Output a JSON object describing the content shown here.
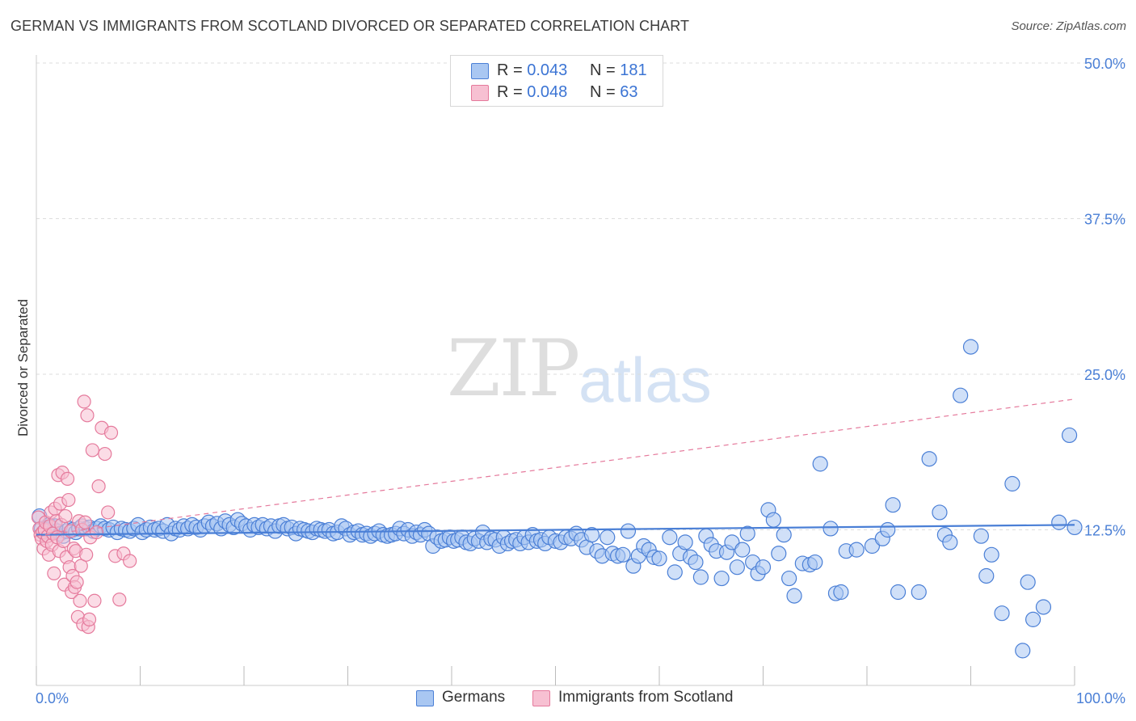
{
  "title": "GERMAN VS IMMIGRANTS FROM SCOTLAND DIVORCED OR SEPARATED CORRELATION CHART",
  "source": "Source: ZipAtlas.com",
  "watermark": {
    "zip": "ZIP",
    "atlas": "atlas"
  },
  "colors": {
    "blue": "#4a7fd6",
    "blue_fill": "#a9c7f2",
    "pink": "#e57a9c",
    "pink_fill": "#f7c0d2",
    "grid": "#dddddd"
  },
  "legend_top": {
    "rows": [
      {
        "r_label": "R = ",
        "r_value": "0.043",
        "n_label": "N = ",
        "n_value": "181"
      },
      {
        "r_label": "R = ",
        "r_value": "0.048",
        "n_label": "N = ",
        "n_value": "63"
      }
    ]
  },
  "bottom_legend": {
    "series1": "Germans",
    "series2": "Immigrants from Scotland"
  },
  "chart_data": {
    "type": "scatter",
    "ylabel": "Divorced or Separated",
    "xlim": [
      0,
      100
    ],
    "ylim": [
      0,
      50
    ],
    "x_tick_labels": {
      "left": "0.0%",
      "right": "100.0%"
    },
    "y_tick_labels": [
      "12.5%",
      "25.0%",
      "37.5%",
      "50.0%"
    ],
    "y_ticks": [
      12.5,
      25.0,
      37.5,
      50.0
    ],
    "legend_placement": "top-center",
    "series": [
      {
        "name": "Germans",
        "r": 0.043,
        "n": 181,
        "trend": {
          "x": [
            0,
            100
          ],
          "y": [
            12.1,
            12.9
          ],
          "style": "solid"
        },
        "points": [
          [
            0.3,
            13.6
          ],
          [
            0.5,
            12.6
          ],
          [
            0.7,
            12.3
          ],
          [
            0.9,
            12.5
          ],
          [
            1.2,
            12.9
          ],
          [
            1.5,
            12.7
          ],
          [
            1.8,
            12.8
          ],
          [
            2.0,
            12.4
          ],
          [
            2.3,
            12.2
          ],
          [
            2.6,
            12.0
          ],
          [
            2.9,
            12.4
          ],
          [
            3.2,
            12.6
          ],
          [
            3.5,
            12.5
          ],
          [
            3.8,
            12.3
          ],
          [
            4.1,
            12.6
          ],
          [
            4.4,
            12.8
          ],
          [
            4.8,
            12.6
          ],
          [
            5.1,
            12.7
          ],
          [
            5.5,
            12.4
          ],
          [
            5.8,
            12.6
          ],
          [
            6.2,
            12.8
          ],
          [
            6.6,
            12.6
          ],
          [
            7.0,
            12.5
          ],
          [
            7.4,
            12.7
          ],
          [
            7.8,
            12.3
          ],
          [
            8.2,
            12.6
          ],
          [
            8.6,
            12.5
          ],
          [
            9.0,
            12.4
          ],
          [
            9.4,
            12.6
          ],
          [
            9.8,
            12.9
          ],
          [
            10.2,
            12.3
          ],
          [
            10.6,
            12.5
          ],
          [
            11.0,
            12.7
          ],
          [
            11.4,
            12.5
          ],
          [
            11.8,
            12.6
          ],
          [
            12.2,
            12.4
          ],
          [
            12.6,
            12.9
          ],
          [
            13.0,
            12.2
          ],
          [
            13.4,
            12.6
          ],
          [
            13.8,
            12.5
          ],
          [
            14.2,
            12.8
          ],
          [
            14.6,
            12.6
          ],
          [
            15.0,
            12.9
          ],
          [
            15.4,
            12.7
          ],
          [
            15.8,
            12.5
          ],
          [
            16.2,
            12.8
          ],
          [
            16.6,
            13.1
          ],
          [
            17.0,
            12.8
          ],
          [
            17.4,
            13.0
          ],
          [
            17.8,
            12.6
          ],
          [
            18.2,
            13.2
          ],
          [
            18.6,
            12.9
          ],
          [
            19.0,
            12.7
          ],
          [
            19.4,
            13.3
          ],
          [
            19.8,
            13.0
          ],
          [
            20.2,
            12.8
          ],
          [
            20.6,
            12.5
          ],
          [
            21.0,
            12.9
          ],
          [
            21.4,
            12.7
          ],
          [
            21.8,
            12.9
          ],
          [
            22.2,
            12.6
          ],
          [
            22.6,
            12.8
          ],
          [
            23.0,
            12.4
          ],
          [
            23.4,
            12.8
          ],
          [
            23.8,
            12.9
          ],
          [
            24.2,
            12.6
          ],
          [
            24.6,
            12.7
          ],
          [
            25.0,
            12.2
          ],
          [
            25.4,
            12.6
          ],
          [
            25.8,
            12.5
          ],
          [
            26.2,
            12.4
          ],
          [
            26.6,
            12.3
          ],
          [
            27.0,
            12.6
          ],
          [
            27.4,
            12.5
          ],
          [
            27.8,
            12.4
          ],
          [
            28.2,
            12.5
          ],
          [
            28.6,
            12.2
          ],
          [
            29.0,
            12.3
          ],
          [
            29.4,
            12.8
          ],
          [
            29.8,
            12.6
          ],
          [
            30.2,
            12.1
          ],
          [
            30.6,
            12.3
          ],
          [
            31.0,
            12.4
          ],
          [
            31.4,
            12.1
          ],
          [
            31.8,
            12.2
          ],
          [
            32.2,
            12.0
          ],
          [
            32.6,
            12.2
          ],
          [
            33.0,
            12.4
          ],
          [
            33.4,
            12.1
          ],
          [
            33.8,
            12.0
          ],
          [
            34.2,
            12.1
          ],
          [
            34.6,
            12.2
          ],
          [
            35.0,
            12.6
          ],
          [
            35.4,
            12.2
          ],
          [
            35.8,
            12.5
          ],
          [
            36.2,
            12.0
          ],
          [
            36.6,
            12.3
          ],
          [
            37.0,
            12.1
          ],
          [
            37.4,
            12.5
          ],
          [
            37.8,
            12.2
          ],
          [
            38.2,
            11.2
          ],
          [
            38.6,
            11.9
          ],
          [
            39.0,
            11.6
          ],
          [
            39.4,
            11.7
          ],
          [
            39.8,
            11.9
          ],
          [
            40.2,
            11.6
          ],
          [
            40.6,
            11.7
          ],
          [
            41.0,
            11.9
          ],
          [
            41.4,
            11.5
          ],
          [
            41.8,
            11.4
          ],
          [
            42.2,
            11.8
          ],
          [
            42.6,
            11.6
          ],
          [
            43.0,
            12.3
          ],
          [
            43.4,
            11.5
          ],
          [
            43.8,
            11.8
          ],
          [
            44.2,
            11.7
          ],
          [
            44.6,
            11.2
          ],
          [
            45.0,
            11.9
          ],
          [
            45.4,
            11.4
          ],
          [
            45.8,
            11.6
          ],
          [
            46.2,
            11.7
          ],
          [
            46.6,
            11.4
          ],
          [
            47.0,
            11.9
          ],
          [
            47.4,
            11.5
          ],
          [
            47.8,
            12.1
          ],
          [
            48.2,
            11.6
          ],
          [
            48.6,
            11.7
          ],
          [
            49.0,
            11.4
          ],
          [
            49.4,
            11.9
          ],
          [
            50.0,
            11.6
          ],
          [
            50.5,
            11.5
          ],
          [
            51.0,
            11.9
          ],
          [
            51.5,
            11.8
          ],
          [
            52.0,
            12.2
          ],
          [
            52.5,
            11.7
          ],
          [
            53.0,
            11.1
          ],
          [
            53.5,
            12.1
          ],
          [
            54.0,
            10.8
          ],
          [
            54.5,
            10.4
          ],
          [
            55.0,
            11.9
          ],
          [
            55.5,
            10.6
          ],
          [
            56.0,
            10.4
          ],
          [
            56.5,
            10.5
          ],
          [
            57.0,
            12.4
          ],
          [
            57.5,
            9.6
          ],
          [
            58.0,
            10.4
          ],
          [
            58.5,
            11.2
          ],
          [
            59.0,
            10.9
          ],
          [
            59.5,
            10.3
          ],
          [
            60.0,
            10.2
          ],
          [
            61.0,
            11.9
          ],
          [
            61.5,
            9.1
          ],
          [
            62.0,
            10.6
          ],
          [
            62.5,
            11.5
          ],
          [
            63.0,
            10.3
          ],
          [
            63.5,
            9.9
          ],
          [
            64.0,
            8.7
          ],
          [
            64.5,
            12.0
          ],
          [
            65.0,
            11.3
          ],
          [
            65.5,
            10.8
          ],
          [
            66.0,
            8.6
          ],
          [
            66.5,
            10.7
          ],
          [
            67.0,
            11.5
          ],
          [
            67.5,
            9.5
          ],
          [
            68.0,
            10.9
          ],
          [
            68.5,
            12.2
          ],
          [
            69.0,
            9.9
          ],
          [
            69.5,
            9.0
          ],
          [
            70.0,
            9.5
          ],
          [
            70.5,
            14.1
          ],
          [
            71.0,
            13.3
          ],
          [
            71.5,
            10.6
          ],
          [
            72.0,
            12.1
          ],
          [
            72.5,
            8.6
          ],
          [
            73.0,
            7.2
          ],
          [
            73.8,
            9.8
          ],
          [
            74.5,
            9.7
          ],
          [
            75.0,
            9.9
          ],
          [
            75.5,
            17.8
          ],
          [
            76.5,
            12.6
          ],
          [
            77.0,
            7.4
          ],
          [
            77.5,
            7.5
          ],
          [
            78.0,
            10.8
          ],
          [
            79.0,
            10.9
          ],
          [
            80.5,
            11.2
          ],
          [
            81.5,
            11.8
          ],
          [
            82.0,
            12.5
          ],
          [
            82.5,
            14.5
          ],
          [
            83.0,
            7.5
          ],
          [
            85.0,
            7.5
          ],
          [
            86.0,
            18.2
          ],
          [
            87.0,
            13.9
          ],
          [
            87.5,
            12.1
          ],
          [
            88.0,
            11.5
          ],
          [
            89.0,
            23.3
          ],
          [
            90.0,
            27.2
          ],
          [
            91.0,
            12.0
          ],
          [
            91.5,
            8.8
          ],
          [
            92.0,
            10.5
          ],
          [
            93.0,
            5.8
          ],
          [
            94.0,
            16.2
          ],
          [
            95.0,
            2.8
          ],
          [
            95.5,
            8.3
          ],
          [
            96.0,
            5.3
          ],
          [
            97.0,
            6.3
          ],
          [
            98.5,
            13.1
          ],
          [
            99.5,
            20.1
          ],
          [
            100.0,
            12.7
          ]
        ]
      },
      {
        "name": "Immigrants from Scotland",
        "r": 0.048,
        "n": 63,
        "trend": {
          "x": [
            0,
            100
          ],
          "y": [
            12.0,
            23.0
          ],
          "style": "dashed"
        },
        "points": [
          [
            0.2,
            13.5
          ],
          [
            0.3,
            12.6
          ],
          [
            0.4,
            12.1
          ],
          [
            0.5,
            11.8
          ],
          [
            0.6,
            12.3
          ],
          [
            0.7,
            11.0
          ],
          [
            0.8,
            12.5
          ],
          [
            0.9,
            13.1
          ],
          [
            1.0,
            11.6
          ],
          [
            1.1,
            12.0
          ],
          [
            1.2,
            10.5
          ],
          [
            1.3,
            12.8
          ],
          [
            1.4,
            13.9
          ],
          [
            1.5,
            11.3
          ],
          [
            1.6,
            12.2
          ],
          [
            1.7,
            9.0
          ],
          [
            1.8,
            14.2
          ],
          [
            1.9,
            13.2
          ],
          [
            2.0,
            11.9
          ],
          [
            2.1,
            16.9
          ],
          [
            2.2,
            10.8
          ],
          [
            2.3,
            14.6
          ],
          [
            2.4,
            12.9
          ],
          [
            2.5,
            17.1
          ],
          [
            2.6,
            11.6
          ],
          [
            2.7,
            8.1
          ],
          [
            2.8,
            13.6
          ],
          [
            2.9,
            10.3
          ],
          [
            3.0,
            16.6
          ],
          [
            3.1,
            14.9
          ],
          [
            3.2,
            9.5
          ],
          [
            3.3,
            12.4
          ],
          [
            3.4,
            7.5
          ],
          [
            3.5,
            8.8
          ],
          [
            3.6,
            11.0
          ],
          [
            3.7,
            7.9
          ],
          [
            3.8,
            10.8
          ],
          [
            3.9,
            8.3
          ],
          [
            4.0,
            5.5
          ],
          [
            4.1,
            13.2
          ],
          [
            4.2,
            6.8
          ],
          [
            4.3,
            9.6
          ],
          [
            4.4,
            12.5
          ],
          [
            4.5,
            4.9
          ],
          [
            4.6,
            22.8
          ],
          [
            4.7,
            13.1
          ],
          [
            4.8,
            10.5
          ],
          [
            4.9,
            21.7
          ],
          [
            5.0,
            4.7
          ],
          [
            5.1,
            5.3
          ],
          [
            5.2,
            11.9
          ],
          [
            5.4,
            18.9
          ],
          [
            5.6,
            6.8
          ],
          [
            5.8,
            12.3
          ],
          [
            6.0,
            16.0
          ],
          [
            6.3,
            20.7
          ],
          [
            6.6,
            18.6
          ],
          [
            6.9,
            13.9
          ],
          [
            7.2,
            20.3
          ],
          [
            7.6,
            10.4
          ],
          [
            8.0,
            6.9
          ],
          [
            8.4,
            10.6
          ],
          [
            9.0,
            10.0
          ]
        ]
      }
    ]
  }
}
